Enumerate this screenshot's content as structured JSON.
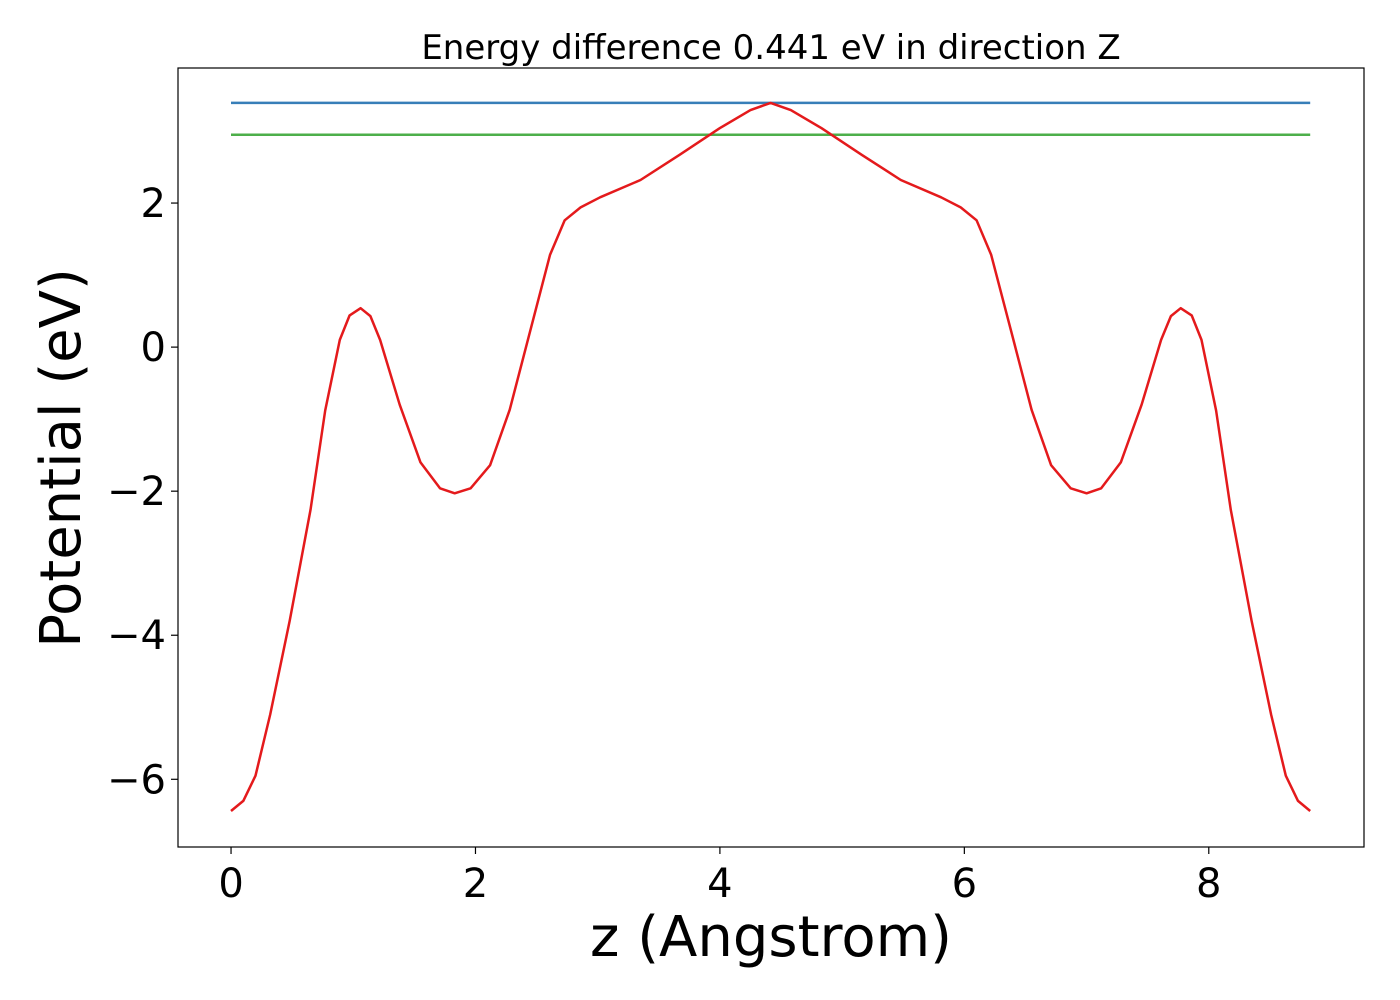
{
  "chart_data": {
    "type": "line",
    "title": "Energy difference 0.441 eV in direction Z",
    "xlabel": "z (Angstrom)",
    "ylabel": "Potential (eV)",
    "xlim": [
      -0.434,
      9.27
    ],
    "ylim": [
      -6.94,
      3.875
    ],
    "xticks": [
      0,
      2,
      4,
      6,
      8
    ],
    "xtick_labels": [
      "0",
      "2",
      "4",
      "6",
      "8"
    ],
    "yticks": [
      -6,
      -4,
      -2,
      0,
      2
    ],
    "ytick_labels": [
      "−6",
      "−4",
      "−2",
      "0",
      "2"
    ],
    "grid": false,
    "series": [
      {
        "name": "potential",
        "color": "#e41a1c",
        "x": [
          0,
          0.1,
          0.2,
          0.32,
          0.48,
          0.65,
          0.77,
          0.89,
          0.97,
          1.06,
          1.14,
          1.22,
          1.38,
          1.55,
          1.71,
          1.83,
          1.96,
          2.12,
          2.28,
          2.45,
          2.61,
          2.73,
          2.86,
          3.02,
          3.35,
          3.67,
          4.0,
          4.25,
          4.415,
          4.58,
          4.83,
          5.16,
          5.48,
          5.81,
          5.97,
          6.1,
          6.22,
          6.38,
          6.55,
          6.71,
          6.87,
          7.0,
          7.12,
          7.28,
          7.45,
          7.61,
          7.69,
          7.77,
          7.86,
          7.94,
          8.06,
          8.18,
          8.35,
          8.51,
          8.63,
          8.73,
          8.83
        ],
        "y": [
          -6.44,
          -6.3,
          -5.95,
          -5.1,
          -3.8,
          -2.26,
          -0.88,
          0.1,
          0.44,
          0.54,
          0.43,
          0.1,
          -0.8,
          -1.6,
          -1.96,
          -2.03,
          -1.96,
          -1.64,
          -0.87,
          0.24,
          1.28,
          1.76,
          1.94,
          2.08,
          2.32,
          2.67,
          3.04,
          3.29,
          3.39,
          3.29,
          3.04,
          2.67,
          2.32,
          2.08,
          1.94,
          1.76,
          1.28,
          0.24,
          -0.87,
          -1.64,
          -1.96,
          -2.03,
          -1.96,
          -1.6,
          -0.8,
          0.1,
          0.43,
          0.54,
          0.44,
          0.1,
          -0.88,
          -2.26,
          -3.8,
          -5.1,
          -5.95,
          -6.3,
          -6.44
        ]
      },
      {
        "name": "max-level",
        "color": "#377eb8",
        "x": [
          0,
          8.83
        ],
        "y": [
          3.39,
          3.39
        ]
      },
      {
        "name": "reference-level",
        "color": "#4daf4a",
        "x": [
          0,
          8.83
        ],
        "y": [
          2.949,
          2.949
        ]
      }
    ]
  }
}
